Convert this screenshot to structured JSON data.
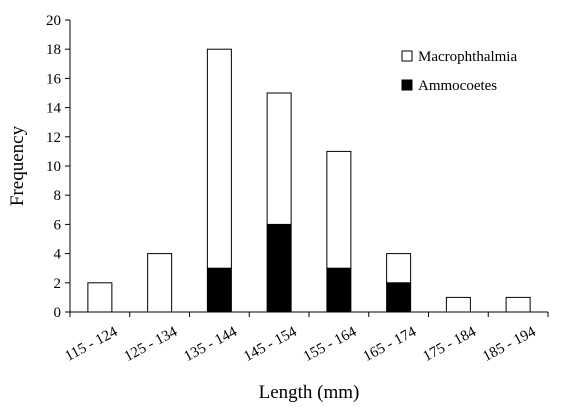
{
  "chart_data": {
    "type": "bar",
    "stacked": true,
    "title": "",
    "xlabel": "Length (mm)",
    "ylabel": "Frequency",
    "ylim": [
      0,
      20
    ],
    "yticks": [
      0,
      2,
      4,
      6,
      8,
      10,
      12,
      14,
      16,
      18,
      20
    ],
    "grid": false,
    "legend_position": "top-right",
    "categories": [
      "115 - 124",
      "125 - 134",
      "135 - 144",
      "145 - 154",
      "155 - 164",
      "165 - 174",
      "175 - 184",
      "185 - 194"
    ],
    "series": [
      {
        "name": "Ammocoetes",
        "color": "#000000",
        "values": [
          0,
          0,
          3,
          6,
          3,
          2,
          0,
          0
        ]
      },
      {
        "name": "Macrophthalmia",
        "color": "#ffffff",
        "values": [
          2,
          4,
          15,
          9,
          8,
          2,
          1,
          1
        ]
      }
    ],
    "legend_order": [
      "Macrophthalmia",
      "Ammocoetes"
    ]
  }
}
